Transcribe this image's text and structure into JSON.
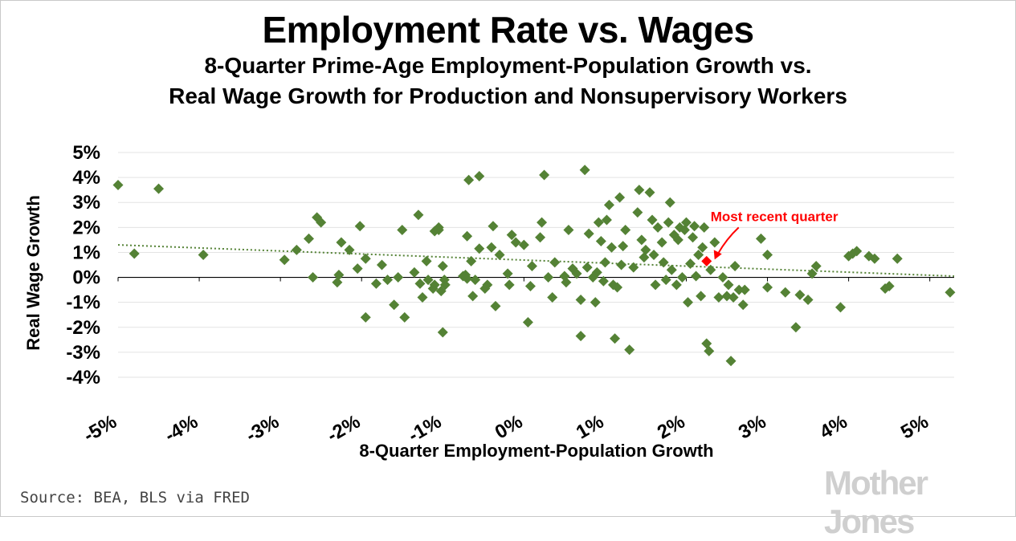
{
  "title": "Employment Rate vs. Wages",
  "subtitle_line1": "8-Quarter Prime-Age Employment-Population Growth vs.",
  "subtitle_line2": "Real Wage Growth for Production and Nonsupervisory Workers",
  "source": "Source: BEA, BLS via FRED",
  "brand": "Mother Jones",
  "colors": {
    "points": "#548235",
    "highlight": "#ff0000",
    "trend": "#548235",
    "grid": "#e3e3e3"
  },
  "chart_data": {
    "type": "scatter",
    "title": "Employment Rate vs. Wages",
    "xlabel": "8-Quarter Employment-Population Growth",
    "ylabel": "Real Wage Growth",
    "xlim": [
      -5,
      5.3
    ],
    "ylim": [
      -4,
      5
    ],
    "x_ticks": [
      -5,
      -4,
      -3,
      -2,
      -1,
      0,
      1,
      2,
      3,
      4,
      5
    ],
    "x_tick_labels": [
      "-5%",
      "-4%",
      "-3%",
      "-2%",
      "-1%",
      "0%",
      "1%",
      "2%",
      "3%",
      "4%",
      "5%"
    ],
    "y_ticks": [
      5,
      4,
      3,
      2,
      1,
      0,
      -1,
      -2,
      -3,
      -4
    ],
    "y_tick_labels": [
      "5%",
      "4%",
      "3%",
      "2%",
      "1%",
      "0%",
      "-1%",
      "-2%",
      "-3%",
      "-4%"
    ],
    "grid": true,
    "trendline": {
      "x": [
        -5,
        5.3
      ],
      "y": [
        1.3,
        0.05
      ]
    },
    "highlight": {
      "x": 2.25,
      "y": 0.65,
      "label": "Most recent quarter"
    },
    "points": [
      [
        -5.0,
        3.7
      ],
      [
        -4.5,
        3.55
      ],
      [
        -4.8,
        0.95
      ],
      [
        -3.95,
        0.9
      ],
      [
        -2.95,
        0.7
      ],
      [
        -2.8,
        1.1
      ],
      [
        -2.65,
        1.55
      ],
      [
        -2.6,
        0.0
      ],
      [
        -2.55,
        2.4
      ],
      [
        -2.5,
        2.2
      ],
      [
        -2.3,
        -0.2
      ],
      [
        -2.28,
        0.1
      ],
      [
        -2.25,
        1.4
      ],
      [
        -2.15,
        1.1
      ],
      [
        -2.05,
        0.35
      ],
      [
        -2.02,
        2.05
      ],
      [
        -1.95,
        -1.6
      ],
      [
        -1.95,
        0.75
      ],
      [
        -1.82,
        -0.25
      ],
      [
        -1.75,
        0.5
      ],
      [
        -1.68,
        -0.1
      ],
      [
        -1.6,
        -1.1
      ],
      [
        -1.55,
        0.0
      ],
      [
        -1.5,
        1.9
      ],
      [
        -1.47,
        -1.6
      ],
      [
        -1.35,
        0.2
      ],
      [
        -1.3,
        2.5
      ],
      [
        -1.28,
        -0.25
      ],
      [
        -1.25,
        -0.8
      ],
      [
        -1.2,
        0.65
      ],
      [
        -1.18,
        -0.1
      ],
      [
        -1.12,
        -0.45
      ],
      [
        -1.1,
        1.85
      ],
      [
        -1.1,
        -0.3
      ],
      [
        -1.05,
        2.0
      ],
      [
        -1.05,
        1.9
      ],
      [
        -1.02,
        -0.55
      ],
      [
        -1.0,
        -2.2
      ],
      [
        -1.0,
        0.45
      ],
      [
        -0.98,
        -0.1
      ],
      [
        -0.97,
        -0.3
      ],
      [
        -0.75,
        0.05
      ],
      [
        -0.72,
        0.1
      ],
      [
        -0.7,
        -0.05
      ],
      [
        -0.7,
        1.65
      ],
      [
        -0.68,
        3.9
      ],
      [
        -0.65,
        0.65
      ],
      [
        -0.63,
        -0.75
      ],
      [
        -0.6,
        -0.1
      ],
      [
        -0.55,
        4.05
      ],
      [
        -0.55,
        1.15
      ],
      [
        -0.48,
        -0.45
      ],
      [
        -0.45,
        -0.3
      ],
      [
        -0.4,
        1.2
      ],
      [
        -0.38,
        2.05
      ],
      [
        -0.35,
        -1.15
      ],
      [
        -0.3,
        0.9
      ],
      [
        -0.2,
        0.15
      ],
      [
        -0.18,
        -0.3
      ],
      [
        -0.15,
        1.7
      ],
      [
        -0.1,
        1.4
      ],
      [
        0.0,
        1.3
      ],
      [
        0.05,
        -1.8
      ],
      [
        0.08,
        -0.35
      ],
      [
        0.1,
        0.45
      ],
      [
        0.2,
        1.6
      ],
      [
        0.22,
        2.2
      ],
      [
        0.25,
        4.1
      ],
      [
        0.3,
        0.0
      ],
      [
        0.35,
        -0.8
      ],
      [
        0.38,
        0.6
      ],
      [
        0.5,
        0.05
      ],
      [
        0.52,
        -0.2
      ],
      [
        0.55,
        1.9
      ],
      [
        0.6,
        0.35
      ],
      [
        0.65,
        0.15
      ],
      [
        0.7,
        -0.9
      ],
      [
        0.7,
        -2.35
      ],
      [
        0.75,
        4.3
      ],
      [
        0.78,
        0.4
      ],
      [
        0.8,
        1.75
      ],
      [
        0.85,
        0.0
      ],
      [
        0.88,
        -1.0
      ],
      [
        0.9,
        0.2
      ],
      [
        0.92,
        2.2
      ],
      [
        0.95,
        1.45
      ],
      [
        0.98,
        -0.15
      ],
      [
        1.0,
        0.6
      ],
      [
        1.02,
        2.3
      ],
      [
        1.05,
        2.9
      ],
      [
        1.08,
        1.2
      ],
      [
        1.1,
        -0.3
      ],
      [
        1.12,
        -2.45
      ],
      [
        1.15,
        -0.4
      ],
      [
        1.18,
        3.2
      ],
      [
        1.2,
        0.5
      ],
      [
        1.22,
        1.25
      ],
      [
        1.25,
        1.9
      ],
      [
        1.3,
        -2.9
      ],
      [
        1.35,
        0.4
      ],
      [
        1.4,
        2.6
      ],
      [
        1.42,
        3.5
      ],
      [
        1.45,
        1.5
      ],
      [
        1.48,
        0.8
      ],
      [
        1.5,
        1.1
      ],
      [
        1.55,
        3.4
      ],
      [
        1.58,
        2.3
      ],
      [
        1.6,
        0.9
      ],
      [
        1.62,
        -0.3
      ],
      [
        1.65,
        2.0
      ],
      [
        1.7,
        1.4
      ],
      [
        1.72,
        0.6
      ],
      [
        1.75,
        -0.1
      ],
      [
        1.78,
        2.2
      ],
      [
        1.8,
        3.0
      ],
      [
        1.82,
        0.3
      ],
      [
        1.85,
        1.7
      ],
      [
        1.88,
        -0.3
      ],
      [
        1.9,
        1.5
      ],
      [
        1.92,
        2.0
      ],
      [
        1.95,
        0.0
      ],
      [
        1.98,
        1.9
      ],
      [
        2.0,
        2.2
      ],
      [
        2.02,
        -1.0
      ],
      [
        2.05,
        0.55
      ],
      [
        2.08,
        1.6
      ],
      [
        2.1,
        2.05
      ],
      [
        2.12,
        0.05
      ],
      [
        2.15,
        0.9
      ],
      [
        2.18,
        -0.75
      ],
      [
        2.2,
        1.2
      ],
      [
        2.22,
        2.0
      ],
      [
        2.25,
        -2.65
      ],
      [
        2.28,
        -2.95
      ],
      [
        2.3,
        0.3
      ],
      [
        2.35,
        1.4
      ],
      [
        2.4,
        -0.8
      ],
      [
        2.45,
        0.0
      ],
      [
        2.5,
        -0.75
      ],
      [
        2.52,
        -0.3
      ],
      [
        2.55,
        -3.35
      ],
      [
        2.58,
        -0.8
      ],
      [
        2.6,
        0.45
      ],
      [
        2.65,
        -0.5
      ],
      [
        2.7,
        -1.1
      ],
      [
        2.72,
        -0.5
      ],
      [
        2.92,
        1.55
      ],
      [
        3.0,
        0.9
      ],
      [
        3.0,
        -0.4
      ],
      [
        3.22,
        -0.6
      ],
      [
        3.35,
        -2.0
      ],
      [
        3.4,
        -0.7
      ],
      [
        3.5,
        -0.9
      ],
      [
        3.55,
        0.15
      ],
      [
        3.6,
        0.45
      ],
      [
        3.9,
        -1.2
      ],
      [
        4.0,
        0.85
      ],
      [
        4.05,
        0.95
      ],
      [
        4.1,
        1.05
      ],
      [
        4.25,
        0.85
      ],
      [
        4.32,
        0.75
      ],
      [
        4.45,
        -0.45
      ],
      [
        4.5,
        -0.35
      ],
      [
        4.6,
        0.75
      ],
      [
        5.25,
        -0.6
      ]
    ]
  }
}
